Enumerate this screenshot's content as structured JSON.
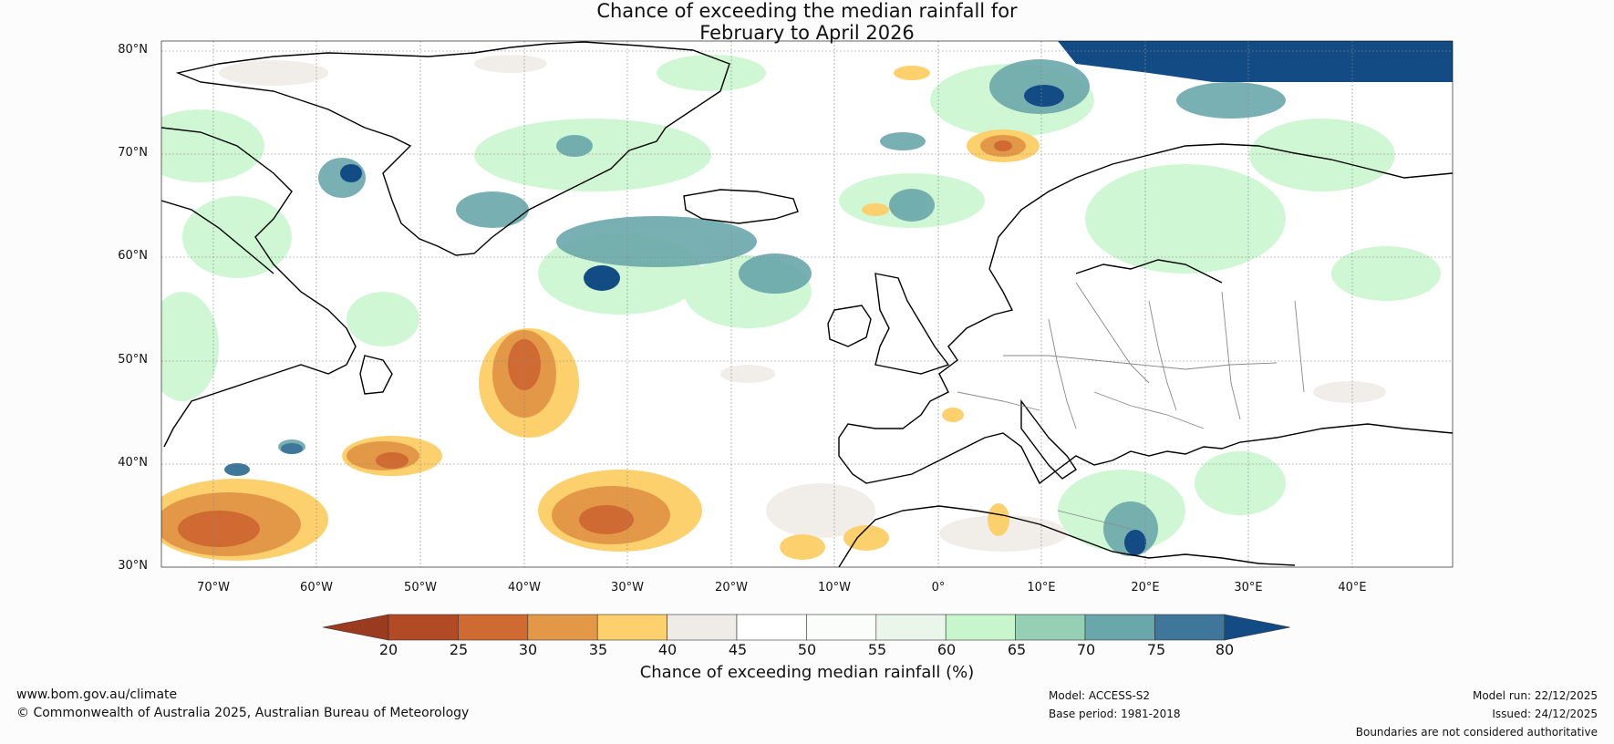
{
  "title": {
    "line1": "Chance of exceeding the median rainfall for",
    "line2": "February to April 2026"
  },
  "map": {
    "region": "North Atlantic and Europe",
    "lat_labels": [
      "80°N",
      "70°N",
      "60°N",
      "50°N",
      "40°N",
      "30°N"
    ],
    "lon_labels": [
      "70°W",
      "60°W",
      "50°W",
      "40°W",
      "30°W",
      "20°W",
      "10°W",
      "0°",
      "10°E",
      "20°E",
      "30°E",
      "40°E"
    ]
  },
  "colorbar": {
    "label": "Chance of exceeding median rainfall (%)",
    "ticks": [
      "20",
      "25",
      "30",
      "35",
      "40",
      "45",
      "50",
      "55",
      "60",
      "65",
      "70",
      "75",
      "80"
    ],
    "colors": [
      "#9a3b1f",
      "#b34a26",
      "#cf6a33",
      "#e39848",
      "#fdd06e",
      "#efece8",
      "#ffffff",
      "#fbfdfb",
      "#e9f6e9",
      "#c8f6cc",
      "#97cfb5",
      "#6aa7ab",
      "#3e7799",
      "#134c85"
    ]
  },
  "footer": {
    "website": "www.bom.gov.au/climate",
    "copyright": "© Commonwealth of Australia 2025, Australian Bureau of Meteorology",
    "model": "Model: ACCESS-S2",
    "base_period": "Base period: 1981-2018",
    "model_run": "Model run: 22/12/2025",
    "issued": "Issued: 24/12/2025",
    "disclaimer": "Boundaries are not considered authoritative"
  }
}
